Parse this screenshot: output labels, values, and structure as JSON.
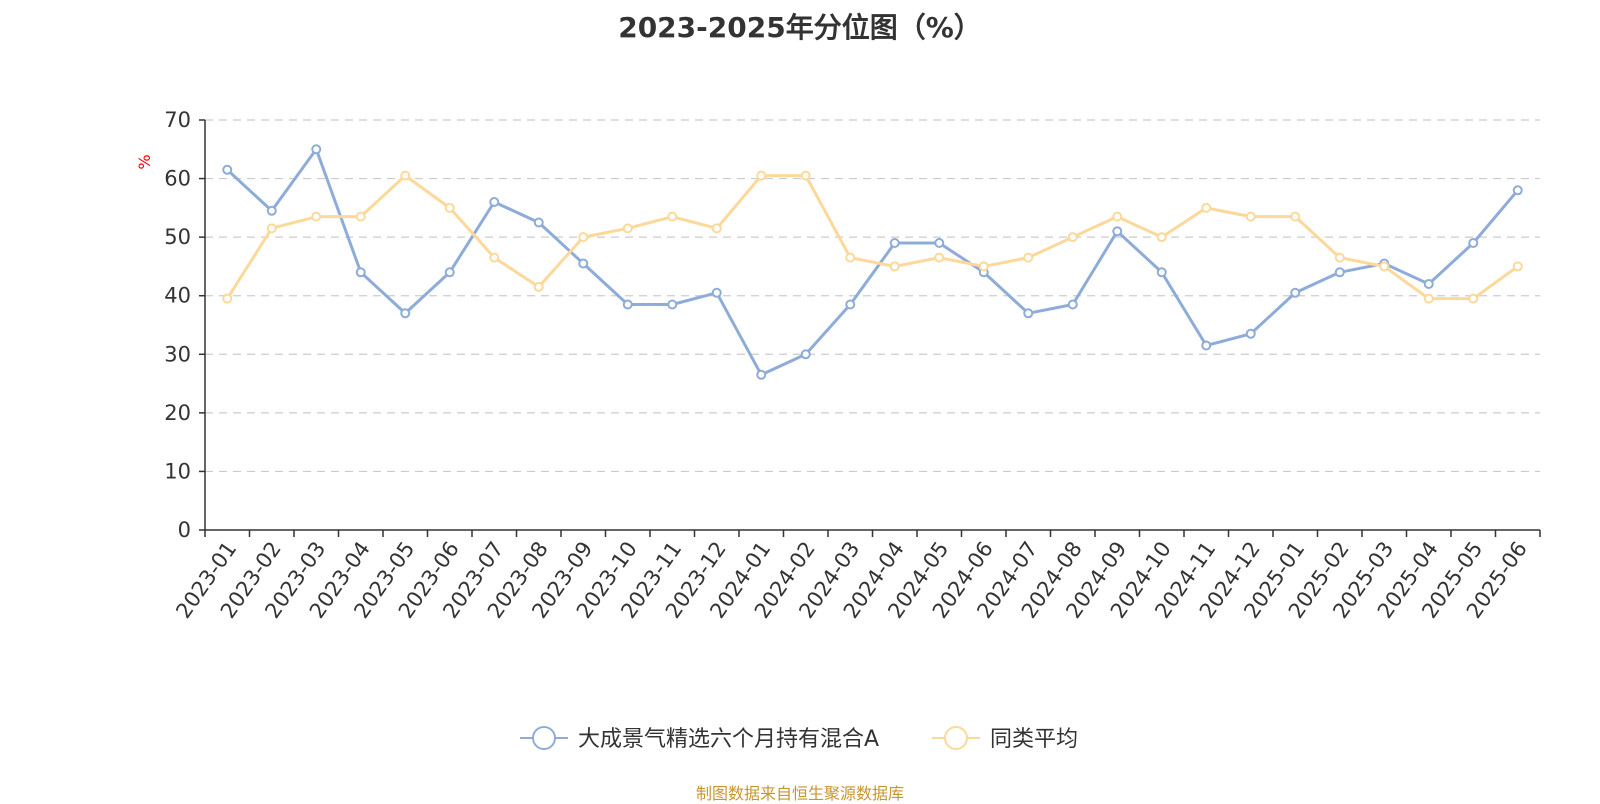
{
  "chart_data": {
    "type": "line",
    "title": "2023-2025年分位图（%）",
    "ylabel": "%",
    "ylim": [
      0,
      70
    ],
    "ytick_step": 10,
    "grid": true,
    "legend_position": "bottom",
    "categories": [
      "2023-01",
      "2023-02",
      "2023-03",
      "2023-04",
      "2023-05",
      "2023-06",
      "2023-07",
      "2023-08",
      "2023-09",
      "2023-10",
      "2023-11",
      "2023-12",
      "2024-01",
      "2024-02",
      "2024-03",
      "2024-04",
      "2024-05",
      "2024-06",
      "2024-07",
      "2024-08",
      "2024-09",
      "2024-10",
      "2024-11",
      "2024-12",
      "2025-01",
      "2025-02",
      "2025-03",
      "2025-04",
      "2025-05",
      "2025-06"
    ],
    "series": [
      {
        "name": "大成景气精选六个月持有混合A",
        "color": "#8eacd8",
        "values": [
          61.5,
          54.5,
          65,
          44,
          37,
          44,
          56,
          52.5,
          45.5,
          38.5,
          38.5,
          40.5,
          26.5,
          30,
          38.5,
          49,
          49,
          44,
          37,
          38.5,
          51,
          44,
          31.5,
          33.5,
          40.5,
          44,
          45.5,
          42,
          49,
          58
        ]
      },
      {
        "name": "同类平均",
        "color": "#fcd99a",
        "values": [
          39.5,
          51.5,
          53.5,
          53.5,
          60.5,
          55,
          46.5,
          41.5,
          50,
          51.5,
          53.5,
          51.5,
          60.5,
          60.5,
          46.5,
          45,
          46.5,
          45,
          46.5,
          50,
          53.5,
          50,
          55,
          53.5,
          53.5,
          46.5,
          45,
          39.5,
          39.5,
          45
        ]
      }
    ]
  },
  "source": "制图数据来自恒生聚源数据库"
}
